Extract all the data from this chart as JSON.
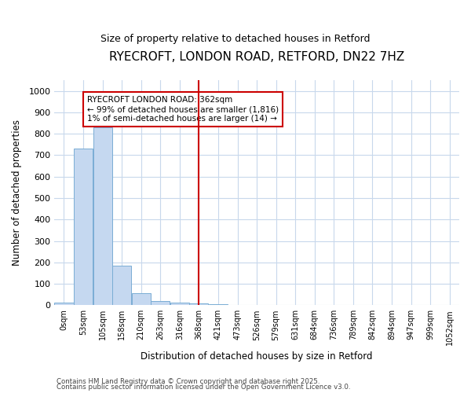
{
  "title1": "RYECROFT, LONDON ROAD, RETFORD, DN22 7HZ",
  "title2": "Size of property relative to detached houses in Retford",
  "xlabel": "Distribution of detached houses by size in Retford",
  "ylabel": "Number of detached properties",
  "categories": [
    "0sqm",
    "53sqm",
    "105sqm",
    "158sqm",
    "210sqm",
    "263sqm",
    "316sqm",
    "368sqm",
    "421sqm",
    "473sqm",
    "526sqm",
    "579sqm",
    "631sqm",
    "684sqm",
    "736sqm",
    "789sqm",
    "842sqm",
    "894sqm",
    "947sqm",
    "999sqm",
    "1052sqm"
  ],
  "values": [
    12,
    730,
    830,
    185,
    57,
    20,
    12,
    8,
    5,
    0,
    0,
    0,
    0,
    0,
    0,
    0,
    0,
    0,
    0,
    0,
    0
  ],
  "bar_color": "#c5d8f0",
  "bar_edge_color": "#7aadd4",
  "vline_x_index": 7,
  "vline_color": "#cc0000",
  "ylim_max": 1050,
  "yticks": [
    0,
    100,
    200,
    300,
    400,
    500,
    600,
    700,
    800,
    900,
    1000
  ],
  "annotation_title": "RYECROFT LONDON ROAD: 362sqm",
  "annotation_line1": "← 99% of detached houses are smaller (1,816)",
  "annotation_line2": "1% of semi-detached houses are larger (14) →",
  "footer1": "Contains HM Land Registry data © Crown copyright and database right 2025.",
  "footer2": "Contains public sector information licensed under the Open Government Licence v3.0.",
  "fig_bg_color": "#ffffff",
  "plot_bg_color": "#ffffff",
  "grid_color": "#c8d8ec"
}
